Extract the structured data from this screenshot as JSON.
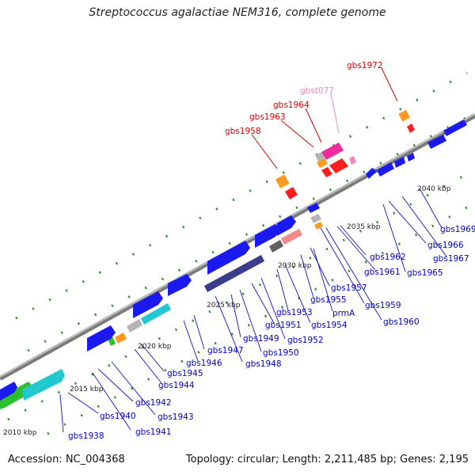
{
  "header": {
    "title": "Streptococcus agalactiae NEM316, complete genome"
  },
  "footer": {
    "accession": "Accession: NC_004368",
    "topology": "Topology: circular; Length: 2,211,485 bp; Genes: 2,195"
  },
  "colors": {
    "backbone": "#8a8a8a",
    "gene_blue": "#1a1af0",
    "gene_navy": "#3c3c8c",
    "gene_cyan": "#22c8d0",
    "gene_green": "#2cc02c",
    "gene_grey": "#b4b4b4",
    "gene_dark_grey": "#606060",
    "gene_salmon": "#f08c8c",
    "gene_orange": "#ff9a1e",
    "gene_red": "#ff1e1e",
    "gene_pink": "#ee2ca0",
    "label_blue": "#0000c8",
    "label_red": "#dd0000",
    "label_pink": "#ee88bb",
    "tick_green": "#1a7a1a"
  },
  "scale_labels": [
    "2010 kbp",
    "2015 kbp",
    "2020 kbp",
    "2025 kbp",
    "2030 kbp",
    "2035 kbp",
    "2040 kbp"
  ],
  "gene_labels_lower": [
    "gbs1938",
    "gbs1940",
    "gbs1941",
    "gbs1942",
    "gbs1943",
    "gbs1944",
    "gbs1945",
    "gbs1946",
    "gbs1947",
    "gbs1948",
    "gbs1949",
    "gbs1950",
    "gbs1951",
    "gbs1952",
    "gbs1953",
    "gbs1954",
    "gbs1955",
    "prmA",
    "gbs1957",
    "gbs1959",
    "gbs1960",
    "gbs1961",
    "gbs1962",
    "gbs1965",
    "gbs1966",
    "gbs1967",
    "gbs1969"
  ],
  "gene_labels_upper": [
    "gbs1958",
    "gbs1963",
    "gbs1964",
    "gbst077",
    "gbs1972"
  ]
}
